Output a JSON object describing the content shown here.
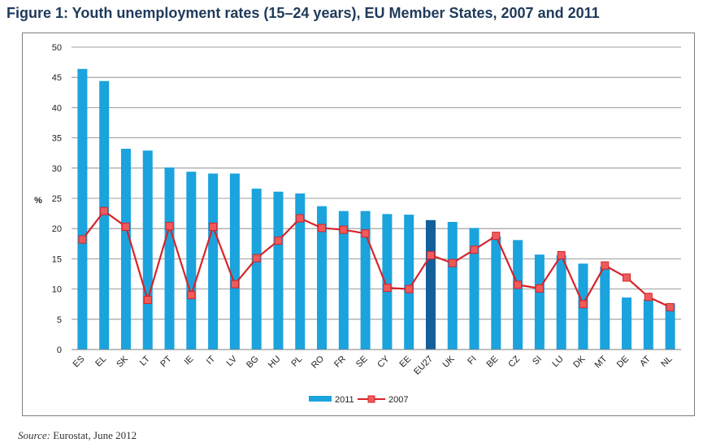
{
  "title": "Figure 1: Youth unemployment rates (15–24 years), EU Member States, 2007 and 2011",
  "source": {
    "label": "Source:",
    "text": " Eurostat, June 2012"
  },
  "colors": {
    "bar": "#1aa3dd",
    "bar_highlight": "#135f9a",
    "line": "#d5242a",
    "marker_fill": "#ef5b5b",
    "grid": "#7f7f7f"
  },
  "chart_data": {
    "type": "bar",
    "categories": [
      "ES",
      "EL",
      "SK",
      "LT",
      "PT",
      "IE",
      "IT",
      "LV",
      "BG",
      "HU",
      "PL",
      "RO",
      "FR",
      "SE",
      "CY",
      "EE",
      "EU27",
      "UK",
      "FI",
      "BE",
      "CZ",
      "SI",
      "LU",
      "DK",
      "MT",
      "DE",
      "AT",
      "NL"
    ],
    "highlight_category": "EU27",
    "series": [
      {
        "name": "2011",
        "type": "bar",
        "values": [
          46.4,
          44.4,
          33.2,
          32.9,
          30.1,
          29.4,
          29.1,
          29.1,
          26.6,
          26.1,
          25.8,
          23.7,
          22.9,
          22.9,
          22.4,
          22.3,
          21.4,
          21.1,
          20.1,
          18.7,
          18.1,
          15.7,
          15.6,
          14.2,
          13.7,
          8.6,
          8.3,
          7.6
        ]
      },
      {
        "name": "2007",
        "type": "line",
        "values": [
          18.2,
          22.9,
          20.3,
          8.2,
          20.4,
          9.0,
          20.3,
          10.8,
          15.1,
          18.0,
          21.7,
          20.1,
          19.8,
          19.2,
          10.2,
          10.0,
          15.6,
          14.3,
          16.5,
          18.8,
          10.7,
          10.1,
          15.6,
          7.5,
          13.9,
          11.9,
          8.7,
          7.0
        ]
      }
    ],
    "ylabel": "%",
    "ylim": [
      0,
      50
    ],
    "yticks": [
      "0",
      "5",
      "10",
      "15",
      "20",
      "25",
      "30",
      "35",
      "40",
      "45",
      "50"
    ],
    "grid": true,
    "legend": "bottom-center"
  }
}
